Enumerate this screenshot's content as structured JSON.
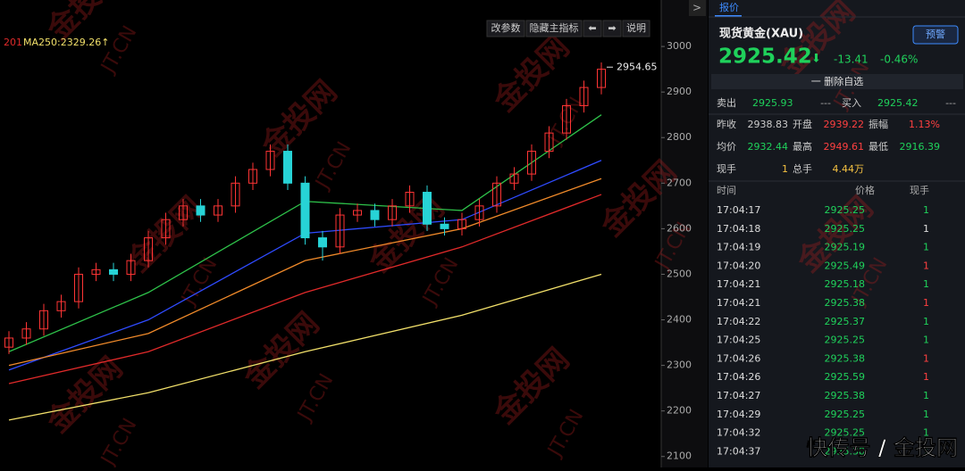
{
  "chart_data": {
    "type": "candlestick",
    "ma_label": "MA250:2329.26↑",
    "ma_label_prefix": "201",
    "ylim": [
      2076,
      3102
    ],
    "yticks": [
      3000,
      2900,
      2800,
      2700,
      2600,
      2500,
      2400,
      2300,
      2200,
      2100
    ],
    "last_price": 2954.65,
    "up_color": "#ff3535",
    "down_color": "#27d3d6",
    "open": [
      2340,
      2360,
      2380,
      2420,
      2440,
      2500,
      2510,
      2500,
      2530,
      2580,
      2620,
      2650,
      2630,
      2650,
      2700,
      2730,
      2770,
      2700,
      2580,
      2560,
      2630,
      2640,
      2620,
      2650,
      2680,
      2610,
      2600,
      2620,
      2650,
      2700,
      2720,
      2770,
      2810,
      2870,
      2910
    ],
    "high": [
      2375,
      2395,
      2435,
      2455,
      2515,
      2525,
      2525,
      2545,
      2595,
      2635,
      2665,
      2665,
      2665,
      2715,
      2745,
      2785,
      2785,
      2715,
      2595,
      2645,
      2655,
      2655,
      2665,
      2695,
      2695,
      2625,
      2635,
      2665,
      2715,
      2735,
      2785,
      2825,
      2885,
      2925,
      2965
    ],
    "low": [
      2325,
      2345,
      2365,
      2405,
      2425,
      2485,
      2485,
      2485,
      2515,
      2565,
      2605,
      2615,
      2615,
      2635,
      2685,
      2715,
      2685,
      2565,
      2530,
      2545,
      2615,
      2605,
      2605,
      2635,
      2595,
      2585,
      2585,
      2605,
      2635,
      2685,
      2705,
      2755,
      2795,
      2855,
      2895
    ],
    "close": [
      2360,
      2380,
      2420,
      2440,
      2500,
      2510,
      2500,
      2530,
      2580,
      2620,
      2650,
      2630,
      2650,
      2700,
      2730,
      2770,
      2700,
      2580,
      2560,
      2630,
      2640,
      2620,
      2650,
      2680,
      2610,
      2600,
      2620,
      2650,
      2700,
      2720,
      2770,
      2810,
      2870,
      2910,
      2950
    ],
    "ma_x": [
      0,
      8,
      17,
      26,
      34
    ],
    "ma_series": [
      {
        "color": "#2ec24a",
        "values": [
          2330,
          2460,
          2660,
          2640,
          2850
        ]
      },
      {
        "color": "#2f4bff",
        "values": [
          2290,
          2400,
          2590,
          2620,
          2750
        ]
      },
      {
        "color": "#f08a2a",
        "values": [
          2300,
          2370,
          2530,
          2600,
          2710
        ]
      },
      {
        "color": "#e02a2a",
        "values": [
          2260,
          2330,
          2460,
          2560,
          2675
        ]
      },
      {
        "color": "#f2e06a",
        "values": [
          2180,
          2240,
          2330,
          2410,
          2500
        ]
      }
    ]
  },
  "toolbar": [
    "改参数",
    "隐藏主指标",
    "⬅",
    "➡",
    "说明"
  ],
  "panel": {
    "tab": "报价",
    "name": "现货黄金(XAU)",
    "alert": "预警",
    "price": "2925.42",
    "arrow": "⬇",
    "change": "-13.41",
    "pct": "-0.46%",
    "remove": "一 删除自选",
    "bidask": [
      [
        "卖出",
        "2925.93",
        "---"
      ],
      [
        "买入",
        "2925.42",
        "---"
      ]
    ],
    "stats": [
      [
        "昨收",
        "2938.83",
        "开盘",
        "2939.22",
        "振幅",
        "1.13%"
      ],
      [
        "均价",
        "2932.44",
        "最高",
        "2949.61",
        "最低",
        "2916.39"
      ],
      [
        "现手",
        "1",
        "总手",
        "4.44万",
        "",
        ""
      ]
    ],
    "stat_colors": [
      [
        "#ccc",
        "#ff4040",
        "#ff4040"
      ],
      [
        "#1fd15b",
        "#ff4040",
        "#1fd15b"
      ],
      [
        "#f5c242",
        "#f5c242",
        "#ccc"
      ]
    ],
    "trade_header": [
      "时间",
      "价格",
      "现手"
    ],
    "trades": [
      [
        "17:04:17",
        "2925.25",
        "1"
      ],
      [
        "17:04:18",
        "2925.25",
        "1"
      ],
      [
        "17:04:19",
        "2925.19",
        "1"
      ],
      [
        "17:04:20",
        "2925.49",
        "1"
      ],
      [
        "17:04:21",
        "2925.18",
        "1"
      ],
      [
        "17:04:21",
        "2925.38",
        "1"
      ],
      [
        "17:04:22",
        "2925.37",
        "1"
      ],
      [
        "17:04:25",
        "2925.25",
        "1"
      ],
      [
        "17:04:26",
        "2925.38",
        "1"
      ],
      [
        "17:04:26",
        "2925.59",
        "1"
      ],
      [
        "17:04:27",
        "2925.38",
        "1"
      ],
      [
        "17:04:29",
        "2925.25",
        "1"
      ],
      [
        "17:04:32",
        "2925.25",
        "1"
      ],
      [
        "17:04:37",
        "2925.38",
        "1"
      ]
    ],
    "trade_qty_colors": [
      "#1fd15b",
      "#ddd",
      "#1fd15b",
      "#ff4040",
      "#1fd15b",
      "#ff4040",
      "#1fd15b",
      "#1fd15b",
      "#ff4040",
      "#ff4040",
      "#1fd15b",
      "#1fd15b",
      "#1fd15b",
      "#1fd15b"
    ]
  },
  "watermark": {
    "brand": "金投网",
    "domain": "JT.CN",
    "footer": "快传号 / 金投网"
  }
}
